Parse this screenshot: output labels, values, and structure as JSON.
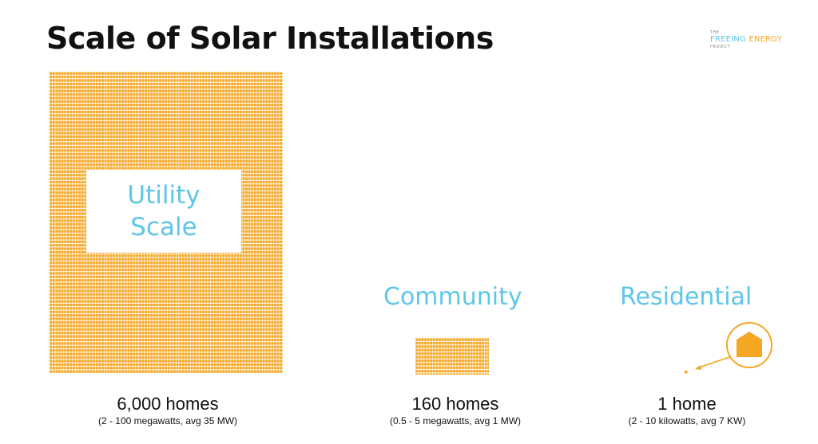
{
  "title": "Scale of Solar Installations",
  "logo": {
    "small_top": "THE",
    "word1": "FREEING",
    "word2": "ENERGY",
    "small_bottom": "PROJECT"
  },
  "colors": {
    "panel": "#f5a623",
    "accent": "#5ec6e8",
    "text": "#111111"
  },
  "categories": [
    {
      "label_lines": [
        "Utility",
        "Scale"
      ],
      "homes": "6,000 homes",
      "range": "(2 - 100 megawatts, avg 35 MW)"
    },
    {
      "label": "Community",
      "homes": "160 homes",
      "range": "(0.5 - 5 megawatts, avg 1 MW)"
    },
    {
      "label": "Residential",
      "homes": "1 home",
      "range": "(2 - 10 kilowatts, avg 7 KW)"
    }
  ]
}
